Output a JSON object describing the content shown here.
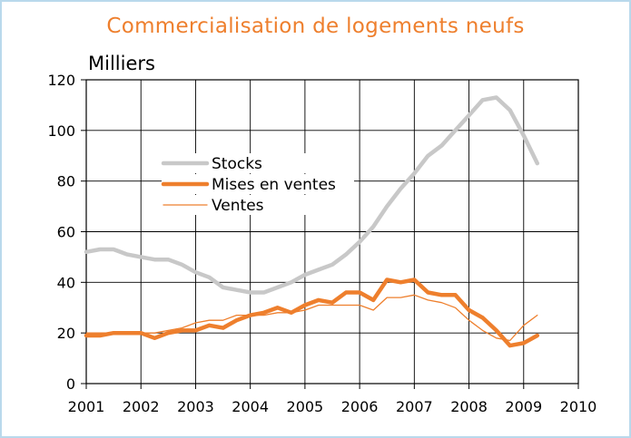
{
  "chart_data": {
    "type": "line",
    "title": "Commercialisation de logements neufs",
    "unit_label": "Milliers",
    "x_ticks": [
      "2001",
      "2002",
      "2003",
      "2004",
      "2005",
      "2006",
      "2007",
      "2008",
      "2009",
      "2010"
    ],
    "y_ticks": [
      "0",
      "20",
      "40",
      "60",
      "80",
      "100",
      "120"
    ],
    "xlim": [
      2001,
      2010
    ],
    "ylim": [
      0,
      120
    ],
    "grid": true,
    "legend_position": "upper-left",
    "series": [
      {
        "name": "Stocks",
        "color": "#c8c8c8",
        "width": "thick",
        "points": [
          [
            2001.0,
            52
          ],
          [
            2001.25,
            53
          ],
          [
            2001.5,
            53
          ],
          [
            2001.75,
            51
          ],
          [
            2002.0,
            50
          ],
          [
            2002.25,
            49
          ],
          [
            2002.5,
            49
          ],
          [
            2002.75,
            47
          ],
          [
            2003.0,
            44
          ],
          [
            2003.25,
            42
          ],
          [
            2003.5,
            38
          ],
          [
            2003.75,
            37
          ],
          [
            2004.0,
            36
          ],
          [
            2004.25,
            36
          ],
          [
            2004.5,
            38
          ],
          [
            2004.75,
            40
          ],
          [
            2005.0,
            43
          ],
          [
            2005.25,
            45
          ],
          [
            2005.5,
            47
          ],
          [
            2005.75,
            51
          ],
          [
            2006.0,
            56
          ],
          [
            2006.25,
            62
          ],
          [
            2006.5,
            70
          ],
          [
            2006.75,
            77
          ],
          [
            2007.0,
            83
          ],
          [
            2007.25,
            90
          ],
          [
            2007.5,
            94
          ],
          [
            2007.75,
            100
          ],
          [
            2008.0,
            106
          ],
          [
            2008.25,
            112
          ],
          [
            2008.5,
            113
          ],
          [
            2008.75,
            108
          ],
          [
            2009.0,
            98
          ],
          [
            2009.25,
            87
          ]
        ]
      },
      {
        "name": "Mises en ventes",
        "color": "#ee7f2d",
        "width": "thick",
        "points": [
          [
            2001.0,
            19
          ],
          [
            2001.25,
            19
          ],
          [
            2001.5,
            20
          ],
          [
            2001.75,
            20
          ],
          [
            2002.0,
            20
          ],
          [
            2002.25,
            18
          ],
          [
            2002.5,
            20
          ],
          [
            2002.75,
            21
          ],
          [
            2003.0,
            21
          ],
          [
            2003.25,
            23
          ],
          [
            2003.5,
            22
          ],
          [
            2003.75,
            25
          ],
          [
            2004.0,
            27
          ],
          [
            2004.25,
            28
          ],
          [
            2004.5,
            30
          ],
          [
            2004.75,
            28
          ],
          [
            2005.0,
            31
          ],
          [
            2005.25,
            33
          ],
          [
            2005.5,
            32
          ],
          [
            2005.75,
            36
          ],
          [
            2006.0,
            36
          ],
          [
            2006.25,
            33
          ],
          [
            2006.5,
            41
          ],
          [
            2006.75,
            40
          ],
          [
            2007.0,
            41
          ],
          [
            2007.25,
            36
          ],
          [
            2007.5,
            35
          ],
          [
            2007.75,
            35
          ],
          [
            2008.0,
            29
          ],
          [
            2008.25,
            26
          ],
          [
            2008.5,
            21
          ],
          [
            2008.75,
            15
          ],
          [
            2009.0,
            16
          ],
          [
            2009.25,
            19
          ]
        ]
      },
      {
        "name": "Ventes",
        "color": "#ee7f2d",
        "width": "thin",
        "points": [
          [
            2001.0,
            20
          ],
          [
            2001.25,
            20
          ],
          [
            2001.5,
            20
          ],
          [
            2001.75,
            20
          ],
          [
            2002.0,
            20
          ],
          [
            2002.25,
            20
          ],
          [
            2002.5,
            21
          ],
          [
            2002.75,
            22
          ],
          [
            2003.0,
            24
          ],
          [
            2003.25,
            25
          ],
          [
            2003.5,
            25
          ],
          [
            2003.75,
            27
          ],
          [
            2004.0,
            27
          ],
          [
            2004.25,
            27
          ],
          [
            2004.5,
            28
          ],
          [
            2004.75,
            28
          ],
          [
            2005.0,
            29
          ],
          [
            2005.25,
            31
          ],
          [
            2005.5,
            31
          ],
          [
            2005.75,
            31
          ],
          [
            2006.0,
            31
          ],
          [
            2006.25,
            29
          ],
          [
            2006.5,
            34
          ],
          [
            2006.75,
            34
          ],
          [
            2007.0,
            35
          ],
          [
            2007.25,
            33
          ],
          [
            2007.5,
            32
          ],
          [
            2007.75,
            30
          ],
          [
            2008.0,
            25
          ],
          [
            2008.25,
            21
          ],
          [
            2008.5,
            18
          ],
          [
            2008.75,
            17
          ],
          [
            2009.0,
            23
          ],
          [
            2009.25,
            27
          ]
        ]
      }
    ]
  }
}
